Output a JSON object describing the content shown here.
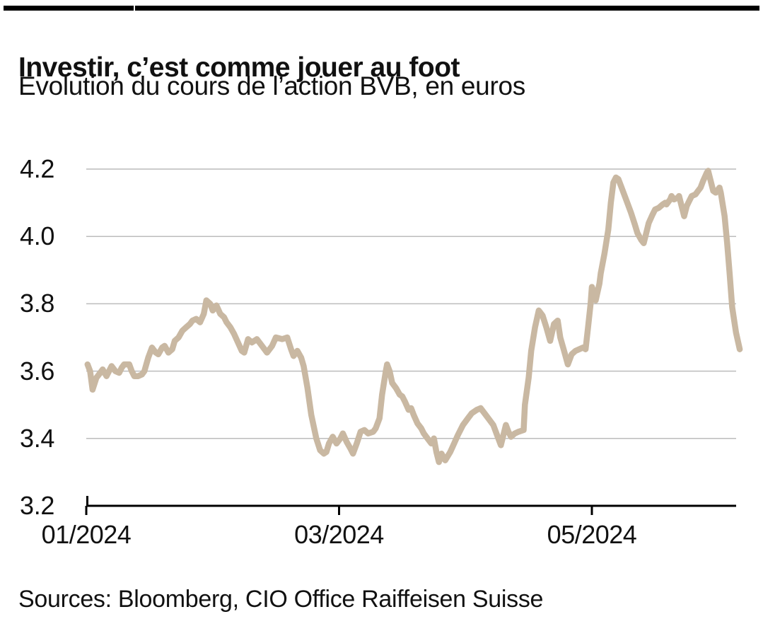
{
  "page": {
    "background_color": "#ffffff",
    "top_bar_color": "#000000"
  },
  "header": {
    "title": "Investir, c’est comme jouer au foot",
    "subtitle": "Evolution du cours de l’action BVB, en euros"
  },
  "footer": {
    "sources": "Sources: Bloomberg, CIO Office Raiffeisen Suisse"
  },
  "chart_data": {
    "type": "line",
    "title": "Investir, c’est comme jouer au foot",
    "subtitle": "Evolution du cours de l’action BVB, en euros",
    "unit": "EUR",
    "ylim": [
      3.2,
      4.2
    ],
    "y_ticks": [
      4.2,
      4.0,
      3.8,
      3.6,
      3.4,
      3.2
    ],
    "y_tick_labels": [
      "4.2",
      "4.0",
      "3.8",
      "3.6",
      "3.4",
      "3.2"
    ],
    "x_ticks": [
      {
        "label": "01/2024",
        "t": 0
      },
      {
        "label": "03/2024",
        "t": 2
      },
      {
        "label": "05/2024",
        "t": 4
      }
    ],
    "x_range_months": [
      0,
      5.14
    ],
    "grid": "horizontal-only",
    "legend": "none",
    "line_color": "#c9b8a2",
    "series": [
      {
        "name": "BVB share price",
        "points_format": "[months_since_01_2024, price_eur]",
        "points": [
          [
            0.01,
            3.62
          ],
          [
            0.03,
            3.6
          ],
          [
            0.05,
            3.545
          ],
          [
            0.08,
            3.58
          ],
          [
            0.11,
            3.595
          ],
          [
            0.13,
            3.605
          ],
          [
            0.16,
            3.585
          ],
          [
            0.18,
            3.6
          ],
          [
            0.2,
            3.615
          ],
          [
            0.23,
            3.6
          ],
          [
            0.26,
            3.595
          ],
          [
            0.28,
            3.61
          ],
          [
            0.3,
            3.62
          ],
          [
            0.34,
            3.62
          ],
          [
            0.36,
            3.6
          ],
          [
            0.38,
            3.585
          ],
          [
            0.41,
            3.585
          ],
          [
            0.44,
            3.59
          ],
          [
            0.46,
            3.6
          ],
          [
            0.49,
            3.64
          ],
          [
            0.52,
            3.67
          ],
          [
            0.55,
            3.655
          ],
          [
            0.57,
            3.65
          ],
          [
            0.6,
            3.67
          ],
          [
            0.62,
            3.675
          ],
          [
            0.65,
            3.655
          ],
          [
            0.68,
            3.665
          ],
          [
            0.7,
            3.69
          ],
          [
            0.73,
            3.7
          ],
          [
            0.76,
            3.72
          ],
          [
            0.79,
            3.73
          ],
          [
            0.82,
            3.74
          ],
          [
            0.84,
            3.75
          ],
          [
            0.87,
            3.755
          ],
          [
            0.9,
            3.745
          ],
          [
            0.93,
            3.77
          ],
          [
            0.95,
            3.81
          ],
          [
            0.98,
            3.8
          ],
          [
            1.0,
            3.78
          ],
          [
            1.03,
            3.795
          ],
          [
            1.06,
            3.77
          ],
          [
            1.09,
            3.76
          ],
          [
            1.11,
            3.745
          ],
          [
            1.14,
            3.73
          ],
          [
            1.17,
            3.71
          ],
          [
            1.2,
            3.685
          ],
          [
            1.23,
            3.66
          ],
          [
            1.25,
            3.655
          ],
          [
            1.28,
            3.695
          ],
          [
            1.31,
            3.685
          ],
          [
            1.35,
            3.695
          ],
          [
            1.39,
            3.675
          ],
          [
            1.43,
            3.655
          ],
          [
            1.47,
            3.675
          ],
          [
            1.5,
            3.7
          ],
          [
            1.55,
            3.695
          ],
          [
            1.59,
            3.7
          ],
          [
            1.62,
            3.665
          ],
          [
            1.64,
            3.645
          ],
          [
            1.67,
            3.66
          ],
          [
            1.7,
            3.64
          ],
          [
            1.72,
            3.615
          ],
          [
            1.75,
            3.55
          ],
          [
            1.78,
            3.47
          ],
          [
            1.82,
            3.4
          ],
          [
            1.85,
            3.365
          ],
          [
            1.88,
            3.355
          ],
          [
            1.9,
            3.36
          ],
          [
            1.92,
            3.385
          ],
          [
            1.95,
            3.405
          ],
          [
            1.98,
            3.385
          ],
          [
            2.01,
            3.4
          ],
          [
            2.03,
            3.415
          ],
          [
            2.06,
            3.39
          ],
          [
            2.09,
            3.37
          ],
          [
            2.11,
            3.355
          ],
          [
            2.14,
            3.385
          ],
          [
            2.17,
            3.42
          ],
          [
            2.2,
            3.425
          ],
          [
            2.23,
            3.415
          ],
          [
            2.27,
            3.42
          ],
          [
            2.29,
            3.43
          ],
          [
            2.32,
            3.46
          ],
          [
            2.34,
            3.53
          ],
          [
            2.37,
            3.6
          ],
          [
            2.38,
            3.62
          ],
          [
            2.4,
            3.6
          ],
          [
            2.42,
            3.565
          ],
          [
            2.45,
            3.55
          ],
          [
            2.48,
            3.53
          ],
          [
            2.5,
            3.525
          ],
          [
            2.52,
            3.51
          ],
          [
            2.55,
            3.485
          ],
          [
            2.57,
            3.49
          ],
          [
            2.59,
            3.47
          ],
          [
            2.62,
            3.445
          ],
          [
            2.65,
            3.43
          ],
          [
            2.67,
            3.415
          ],
          [
            2.7,
            3.4
          ],
          [
            2.73,
            3.385
          ],
          [
            2.75,
            3.4
          ],
          [
            2.77,
            3.36
          ],
          [
            2.79,
            3.33
          ],
          [
            2.81,
            3.355
          ],
          [
            2.84,
            3.335
          ],
          [
            2.88,
            3.36
          ],
          [
            2.91,
            3.385
          ],
          [
            2.94,
            3.41
          ],
          [
            2.98,
            3.44
          ],
          [
            3.02,
            3.46
          ],
          [
            3.05,
            3.475
          ],
          [
            3.09,
            3.485
          ],
          [
            3.12,
            3.49
          ],
          [
            3.16,
            3.47
          ],
          [
            3.19,
            3.455
          ],
          [
            3.22,
            3.44
          ],
          [
            3.25,
            3.41
          ],
          [
            3.28,
            3.38
          ],
          [
            3.32,
            3.44
          ],
          [
            3.34,
            3.42
          ],
          [
            3.36,
            3.405
          ],
          [
            3.39,
            3.415
          ],
          [
            3.42,
            3.42
          ],
          [
            3.46,
            3.425
          ],
          [
            3.47,
            3.5
          ],
          [
            3.5,
            3.58
          ],
          [
            3.52,
            3.66
          ],
          [
            3.55,
            3.73
          ],
          [
            3.58,
            3.78
          ],
          [
            3.61,
            3.765
          ],
          [
            3.64,
            3.73
          ],
          [
            3.67,
            3.69
          ],
          [
            3.7,
            3.74
          ],
          [
            3.73,
            3.75
          ],
          [
            3.75,
            3.7
          ],
          [
            3.78,
            3.66
          ],
          [
            3.81,
            3.62
          ],
          [
            3.84,
            3.65
          ],
          [
            3.87,
            3.66
          ],
          [
            3.9,
            3.665
          ],
          [
            3.93,
            3.67
          ],
          [
            3.95,
            3.665
          ],
          [
            3.97,
            3.73
          ],
          [
            3.99,
            3.8
          ],
          [
            4.0,
            3.85
          ],
          [
            4.02,
            3.83
          ],
          [
            4.03,
            3.81
          ],
          [
            4.06,
            3.86
          ],
          [
            4.07,
            3.89
          ],
          [
            4.1,
            3.95
          ],
          [
            4.13,
            4.02
          ],
          [
            4.15,
            4.1
          ],
          [
            4.17,
            4.16
          ],
          [
            4.19,
            4.175
          ],
          [
            4.21,
            4.17
          ],
          [
            4.23,
            4.15
          ],
          [
            4.25,
            4.13
          ],
          [
            4.28,
            4.1
          ],
          [
            4.31,
            4.07
          ],
          [
            4.34,
            4.035
          ],
          [
            4.36,
            4.01
          ],
          [
            4.39,
            3.99
          ],
          [
            4.41,
            3.98
          ],
          [
            4.43,
            4.01
          ],
          [
            4.45,
            4.04
          ],
          [
            4.48,
            4.065
          ],
          [
            4.5,
            4.08
          ],
          [
            4.53,
            4.085
          ],
          [
            4.56,
            4.095
          ],
          [
            4.58,
            4.1
          ],
          [
            4.59,
            4.095
          ],
          [
            4.62,
            4.11
          ],
          [
            4.63,
            4.12
          ],
          [
            4.65,
            4.11
          ],
          [
            4.68,
            4.115
          ],
          [
            4.69,
            4.12
          ],
          [
            4.71,
            4.09
          ],
          [
            4.73,
            4.06
          ],
          [
            4.75,
            4.09
          ],
          [
            4.77,
            4.105
          ],
          [
            4.79,
            4.12
          ],
          [
            4.82,
            4.125
          ],
          [
            4.84,
            4.135
          ],
          [
            4.86,
            4.145
          ],
          [
            4.88,
            4.165
          ],
          [
            4.91,
            4.19
          ],
          [
            4.92,
            4.195
          ],
          [
            4.95,
            4.15
          ],
          [
            4.96,
            4.135
          ],
          [
            4.98,
            4.13
          ],
          [
            5.01,
            4.145
          ],
          [
            5.02,
            4.13
          ],
          [
            5.05,
            4.06
          ],
          [
            5.07,
            3.98
          ],
          [
            5.09,
            3.89
          ],
          [
            5.11,
            3.79
          ],
          [
            5.14,
            3.715
          ],
          [
            5.17,
            3.665
          ]
        ]
      }
    ]
  }
}
